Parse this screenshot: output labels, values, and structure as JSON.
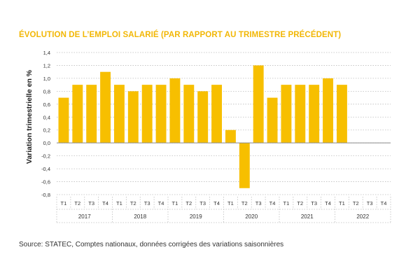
{
  "chart_data": {
    "type": "bar",
    "title": "ÉVOLUTION DE L’EMPLOI SALARIÉ (PAR RAPPORT AU TRIMESTRE PRÉCÉDENT)",
    "ylabel": "Variation trimestrielle en %",
    "xlabel": "",
    "ylim": [
      -0.8,
      1.4
    ],
    "yticks": [
      "1,4",
      "1,2",
      "1,0",
      "0,8",
      "0,6",
      "0,4",
      "0,2",
      "0,0",
      "-0,2",
      "-0,4",
      "-0,6",
      "-0,8"
    ],
    "grid": true,
    "legend": "none",
    "years": [
      "2017",
      "2018",
      "2019",
      "2020",
      "2021",
      "2022"
    ],
    "quarters": [
      "T1",
      "T2",
      "T3",
      "T4"
    ],
    "categories": [
      "T1 2017",
      "T2 2017",
      "T3 2017",
      "T4 2017",
      "T1 2018",
      "T2 2018",
      "T3 2018",
      "T4 2018",
      "T1 2019",
      "T2 2019",
      "T3 2019",
      "T4 2019",
      "T1 2020",
      "T2 2020",
      "T3 2020",
      "T4 2020",
      "T1 2021",
      "T2 2021",
      "T3 2021",
      "T4 2021",
      "T1 2022",
      "T2 2022",
      "T3 2022",
      "T4 2022"
    ],
    "values": [
      0.7,
      0.9,
      0.9,
      1.1,
      0.9,
      0.8,
      0.9,
      0.9,
      1.0,
      0.9,
      0.8,
      0.9,
      0.2,
      -0.7,
      1.2,
      0.7,
      0.9,
      0.9,
      0.9,
      1.0,
      0.9,
      null,
      null,
      null
    ],
    "colors": {
      "bar": "#f7bf00",
      "title": "#f2b705",
      "grid": "#bdbdbd",
      "axis": "#8c8c8c"
    }
  },
  "source": "Source: STATEC, Comptes nationaux, données corrigées des variations saisonnières"
}
